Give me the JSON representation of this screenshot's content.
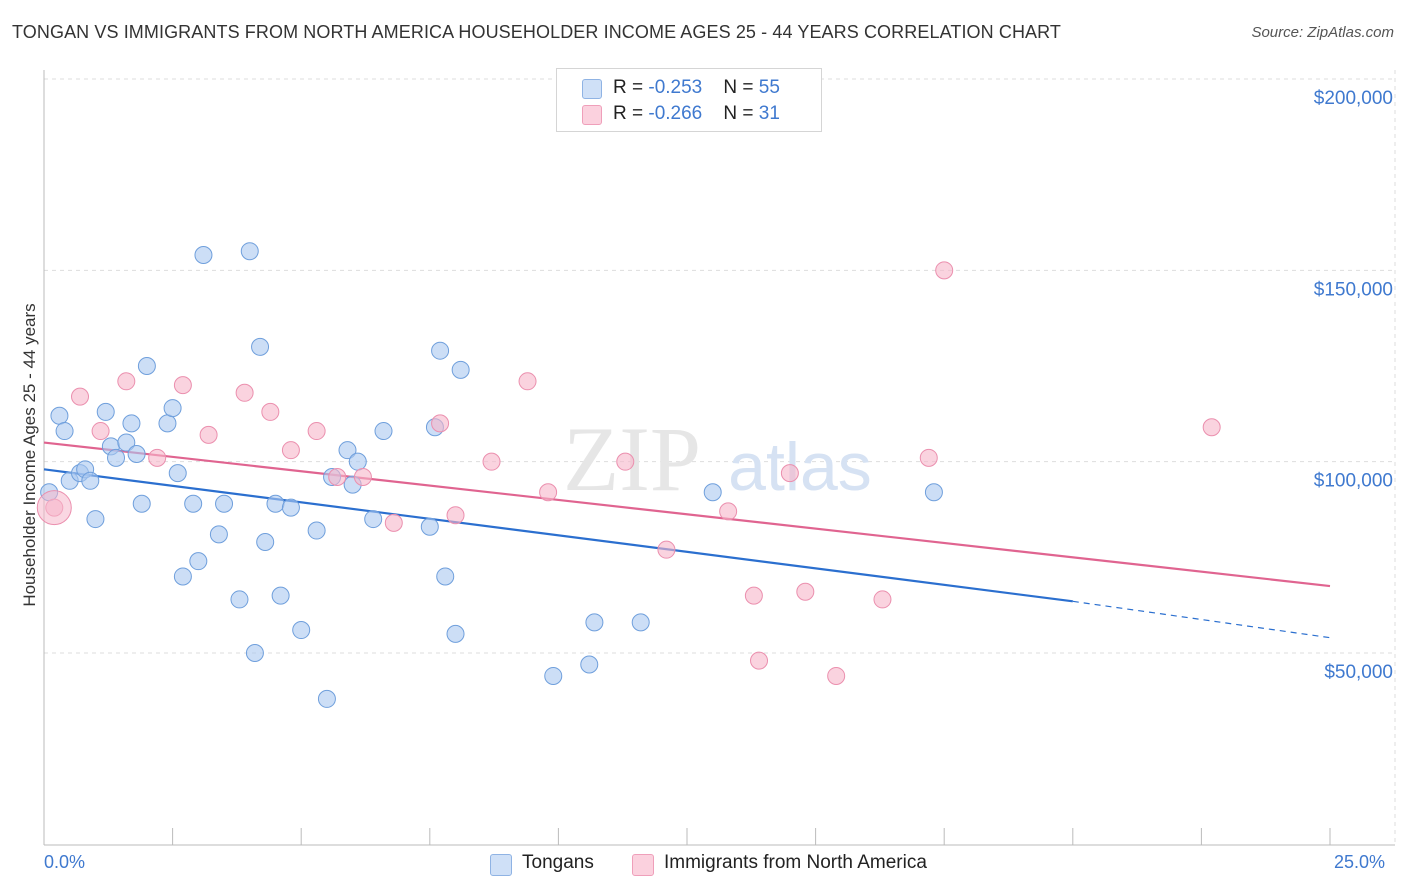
{
  "title": "TONGAN VS IMMIGRANTS FROM NORTH AMERICA HOUSEHOLDER INCOME AGES 25 - 44 YEARS CORRELATION CHART",
  "source": "Source: ZipAtlas.com",
  "watermark": {
    "part1": "ZIP",
    "part2": "atlas"
  },
  "legend": {
    "rows": [
      {
        "r_label": "R = ",
        "r_value": "-0.253",
        "n_label": "N = ",
        "n_value": "55",
        "color": "#aac8f0"
      },
      {
        "r_label": "R = ",
        "r_value": "-0.266",
        "n_label": "N = ",
        "n_value": "31",
        "color": "#f6b6ca"
      }
    ]
  },
  "bottom_legend": [
    {
      "label": "Tongans",
      "color": "#aac8f0"
    },
    {
      "label": "Immigrants from North America",
      "color": "#f6b6ca"
    }
  ],
  "x_tick_min": "0.0%",
  "x_tick_max": "25.0%",
  "colors": {
    "blue_line": "#2b6fcf",
    "pink_line": "#e06490",
    "axis_label": "#3f79cf",
    "grid": "#dddddd"
  },
  "chart_data": {
    "type": "scatter",
    "xlabel": "",
    "ylabel": "Householder Income Ages 25 - 44 years",
    "xlim": [
      0,
      25
    ],
    "ylim": [
      0,
      210000
    ],
    "y_ticks": [
      50000,
      100000,
      150000,
      200000
    ],
    "y_tick_labels": [
      "$50,000",
      "$100,000",
      "$150,000",
      "$200,000"
    ],
    "grid": true,
    "legend_position": "top-center",
    "series": [
      {
        "name": "Tongans",
        "color": "#aac8f0",
        "stroke": "#6f9fdc",
        "x": [
          0.1,
          0.3,
          0.4,
          0.5,
          0.7,
          0.8,
          0.9,
          1.0,
          1.2,
          1.3,
          1.4,
          1.6,
          1.7,
          1.8,
          1.9,
          2.0,
          2.4,
          2.5,
          2.6,
          2.7,
          2.9,
          3.0,
          3.1,
          3.4,
          3.5,
          3.8,
          4.0,
          4.1,
          4.2,
          4.3,
          4.5,
          4.6,
          4.8,
          5.0,
          5.3,
          5.5,
          5.6,
          5.9,
          6.0,
          6.1,
          6.4,
          6.6,
          7.5,
          7.6,
          7.7,
          7.8,
          8.0,
          8.1,
          9.9,
          10.6,
          10.7,
          11.6,
          13.0,
          17.3,
          17.6
        ],
        "y": [
          92000,
          112000,
          108000,
          95000,
          97000,
          98000,
          95000,
          85000,
          113000,
          104000,
          101000,
          105000,
          110000,
          102000,
          89000,
          125000,
          110000,
          114000,
          97000,
          70000,
          89000,
          74000,
          154000,
          81000,
          89000,
          64000,
          155000,
          50000,
          130000,
          79000,
          89000,
          65000,
          88000,
          56000,
          82000,
          38000,
          96000,
          103000,
          94000,
          100000,
          85000,
          108000,
          83000,
          109000,
          129000,
          70000,
          55000,
          124000,
          44000,
          47000,
          58000,
          58000,
          92000,
          92000,
          null
        ]
      },
      {
        "name": "Immigrants from North America",
        "color": "#f6b6ca",
        "stroke": "#eb8fae",
        "x": [
          0.2,
          0.7,
          1.1,
          1.6,
          2.2,
          2.7,
          3.2,
          3.9,
          4.4,
          4.8,
          5.3,
          5.7,
          6.2,
          6.8,
          7.7,
          8.0,
          8.7,
          9.4,
          9.8,
          11.3,
          12.1,
          13.3,
          13.8,
          13.9,
          14.5,
          14.8,
          15.4,
          16.3,
          17.2,
          17.5,
          22.7
        ],
        "y": [
          88000,
          117000,
          108000,
          121000,
          101000,
          120000,
          107000,
          118000,
          113000,
          103000,
          108000,
          96000,
          96000,
          84000,
          110000,
          86000,
          100000,
          121000,
          92000,
          100000,
          77000,
          87000,
          65000,
          48000,
          97000,
          66000,
          44000,
          64000,
          101000,
          150000,
          109000
        ],
        "extra_points_note": null
      }
    ],
    "trend_lines": [
      {
        "series": "Tongans",
        "x_start": 0.0,
        "y_start": 98000,
        "x_end": 20.0,
        "y_end": 63500,
        "dashed_to_x": 25.0,
        "dashed_to_y": 54000
      },
      {
        "series": "Immigrants from North America",
        "x_start": 0.0,
        "y_start": 105000,
        "x_end": 25.0,
        "y_end": 67500
      }
    ]
  }
}
